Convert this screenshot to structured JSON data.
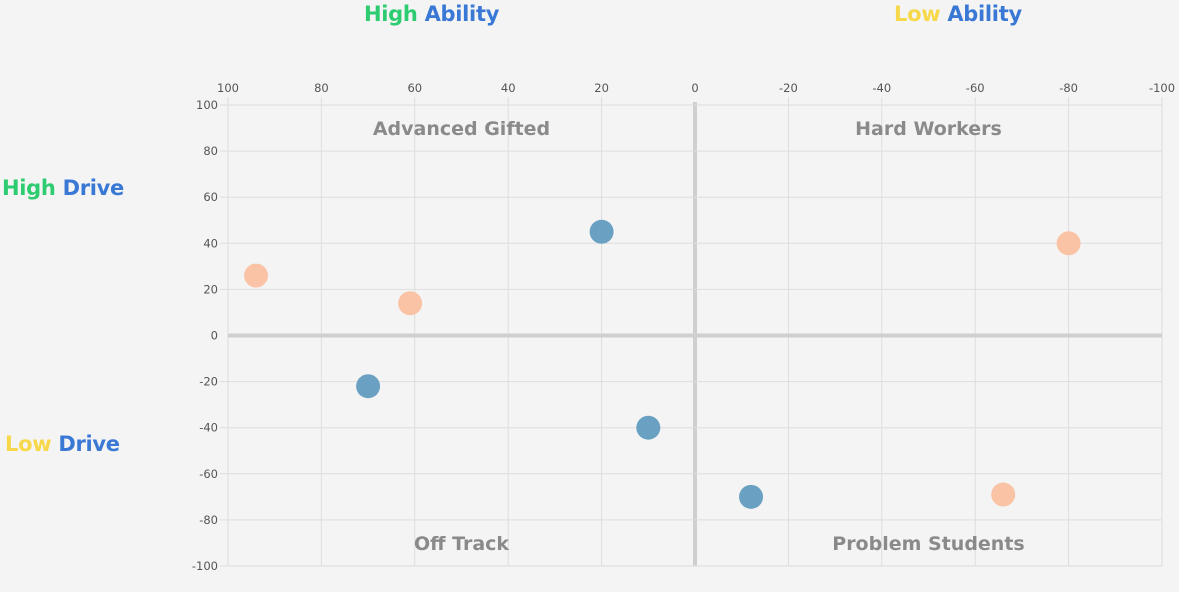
{
  "axis_titles": {
    "top_left": {
      "a": "High",
      "b": "Ability"
    },
    "top_right": {
      "a": "Low",
      "b": "Ability"
    },
    "left_top": {
      "a": "High",
      "b": "Drive"
    },
    "left_bottom": {
      "a": "Low",
      "b": "Drive"
    }
  },
  "colors": {
    "high": "#2ecc71",
    "low": "#f7d84b",
    "label_blue": "#3a78d6",
    "series_blue": "#6aa1c2",
    "series_peach": "#fbc3a6",
    "grid": "#dddddd",
    "center_axis": "#cfcfcf"
  },
  "chart_data": {
    "type": "scatter",
    "x": {
      "min": -100,
      "max": 100,
      "reversed": true,
      "ticks": [
        100,
        80,
        60,
        40,
        20,
        0,
        -20,
        -40,
        -60,
        -80,
        -100
      ],
      "tick_position": "top"
    },
    "y": {
      "min": -100,
      "max": 100,
      "ticks": [
        100,
        80,
        60,
        40,
        20,
        0,
        -20,
        -40,
        -60,
        -80,
        -100
      ]
    },
    "grid": true,
    "quadrant_labels": [
      "Advanced Gifted",
      "Hard Workers",
      "Off Track",
      "Problem Students"
    ],
    "series": [
      {
        "color": "#6aa1c2",
        "points": [
          {
            "x": 20,
            "y": 45
          },
          {
            "x": 70,
            "y": -22
          },
          {
            "x": 10,
            "y": -40
          },
          {
            "x": -12,
            "y": -70
          }
        ]
      },
      {
        "color": "#fbc3a6",
        "points": [
          {
            "x": 94,
            "y": 26
          },
          {
            "x": 61,
            "y": 14
          },
          {
            "x": -80,
            "y": 40
          },
          {
            "x": -66,
            "y": -69
          }
        ]
      }
    ]
  }
}
